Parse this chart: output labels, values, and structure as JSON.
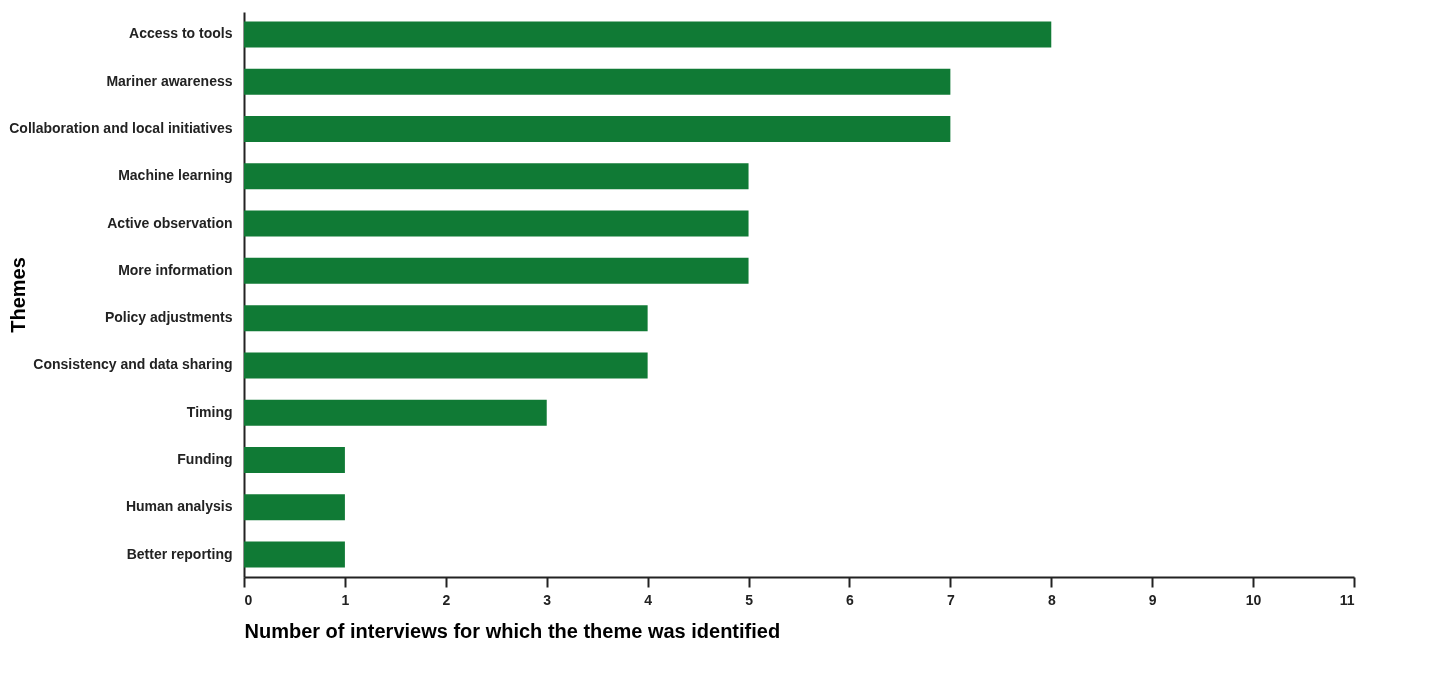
{
  "chart_data": {
    "type": "bar",
    "orientation": "horizontal",
    "xlabel": "Number of interviews for which the theme was identified",
    "ylabel": "Themes",
    "categories": [
      "Access to tools",
      "Mariner awareness",
      "Collaboration and local initiatives",
      "Machine learning",
      "Active observation",
      "More information",
      "Policy adjustments",
      "Consistency and data sharing",
      "Timing",
      "Funding",
      "Human analysis",
      "Better reporting"
    ],
    "values": [
      8,
      7,
      7,
      5,
      5,
      5,
      4,
      4,
      3,
      1,
      1,
      1
    ],
    "color": "#107a35",
    "xlim": [
      0,
      11
    ],
    "xticks": [
      0,
      1,
      2,
      3,
      4,
      5,
      6,
      7,
      8,
      9,
      10,
      11
    ],
    "grid": false
  }
}
